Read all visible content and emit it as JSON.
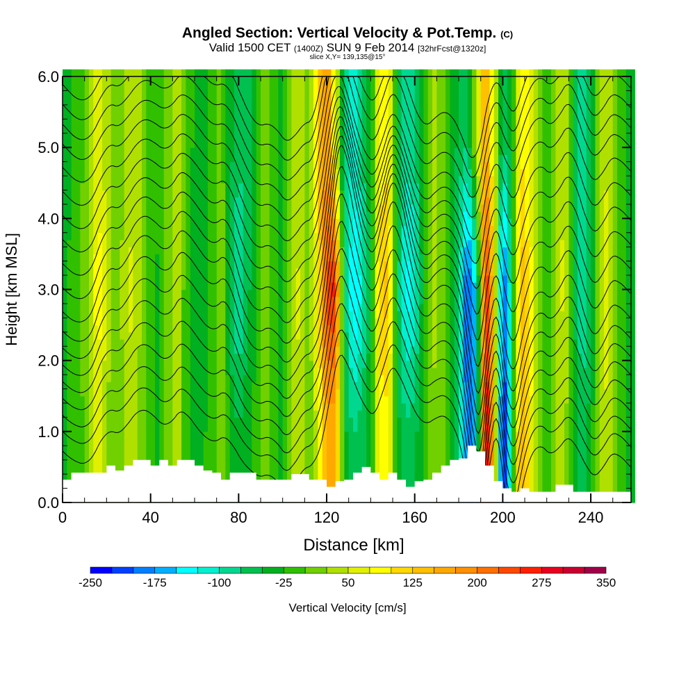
{
  "chart_data": {
    "type": "heatmap",
    "title": "Angled Section: Vertical Velocity & Pot.Temp.",
    "title_suffix": "(C)",
    "subtitle_main": "Valid 1500 CET",
    "subtitle_z": "(1400Z)",
    "subtitle_date": "SUN 9 Feb 2014",
    "subtitle_fcst": "[32hrFcst@1320z]",
    "slice_label": "slice X,Y= 139,135@15°",
    "xlabel": "Distance [km]",
    "ylabel": "Height [km MSL]",
    "xlim": [
      0,
      258.3
    ],
    "ylim": [
      0,
      6
    ],
    "x_ticks": [
      "0",
      "40",
      "80",
      "120",
      "160",
      "200",
      "240"
    ],
    "y_ticks": [
      "0.0",
      "1.0",
      "2.0",
      "3.0",
      "4.0",
      "5.0",
      "6.0"
    ],
    "colorbar": {
      "label": "Vertical Velocity [cm/s]",
      "min": -250,
      "max": 350,
      "step": 25,
      "tick_labels": [
        "-250",
        "-175",
        "-100",
        "-25",
        "50",
        "125",
        "200",
        "275",
        "350"
      ],
      "colors": [
        "#0000ff",
        "#0040ff",
        "#0080ff",
        "#00b0ff",
        "#00ffff",
        "#00f0d0",
        "#00d890",
        "#00c050",
        "#00b020",
        "#30c000",
        "#70d000",
        "#b0e000",
        "#e0f000",
        "#ffff00",
        "#ffd800",
        "#ffc000",
        "#ffa800",
        "#ff9000",
        "#ff7000",
        "#ff4800",
        "#ff2000",
        "#e80020",
        "#c80030",
        "#a00048"
      ]
    },
    "distance_km": [
      0,
      4,
      8,
      12,
      16,
      20,
      24,
      28,
      32,
      36,
      40,
      44,
      48,
      52,
      56,
      60,
      64,
      68,
      72,
      76,
      80,
      84,
      88,
      92,
      96,
      100,
      104,
      108,
      112,
      116,
      120,
      124,
      128,
      132,
      136,
      140,
      144,
      148,
      152,
      156,
      160,
      164,
      168,
      172,
      176,
      180,
      184,
      188,
      192,
      196,
      200,
      204,
      208,
      212,
      216,
      220,
      224,
      228,
      232,
      236,
      240,
      244,
      248,
      252,
      256
    ],
    "vertical_velocity_cm_s": [
      {
        "height_km": 1.0,
        "values": [
          -30,
          -20,
          -10,
          20,
          60,
          30,
          -10,
          30,
          40,
          10,
          -20,
          -30,
          10,
          40,
          -20,
          -40,
          -30,
          -10,
          20,
          -30,
          -50,
          -30,
          -20,
          10,
          -20,
          -40,
          30,
          50,
          10,
          60,
          160,
          150,
          -40,
          -80,
          -60,
          -30,
          80,
          90,
          -40,
          -70,
          -60,
          -20,
          20,
          10,
          -30,
          -80,
          -200,
          -160,
          300,
          140,
          -250,
          -80,
          160,
          90,
          20,
          -30,
          20,
          40,
          -30,
          -60,
          -40,
          30,
          50,
          -10,
          -30
        ]
      },
      {
        "height_km": 3.0,
        "values": [
          -30,
          -20,
          0,
          30,
          100,
          50,
          -10,
          40,
          60,
          20,
          -20,
          -30,
          10,
          60,
          -20,
          -40,
          -40,
          -10,
          30,
          -60,
          -110,
          -60,
          -20,
          20,
          -20,
          -40,
          30,
          60,
          10,
          80,
          240,
          260,
          -60,
          -160,
          -120,
          -40,
          120,
          140,
          -60,
          -140,
          -120,
          -30,
          40,
          20,
          -20,
          -80,
          -220,
          -140,
          270,
          120,
          -230,
          -60,
          150,
          100,
          30,
          -30,
          30,
          60,
          -40,
          -110,
          -60,
          40,
          70,
          -10,
          -30
        ]
      },
      {
        "height_km": 5.0,
        "values": [
          -30,
          -30,
          -10,
          20,
          60,
          40,
          -10,
          30,
          40,
          20,
          -10,
          -20,
          10,
          40,
          -10,
          -30,
          -40,
          -20,
          10,
          -40,
          -70,
          -60,
          -30,
          10,
          -20,
          -40,
          20,
          40,
          10,
          120,
          180,
          60,
          -80,
          -110,
          -80,
          -30,
          80,
          90,
          -40,
          -90,
          -80,
          -30,
          30,
          20,
          -20,
          -60,
          -80,
          40,
          170,
          60,
          -80,
          -40,
          100,
          70,
          20,
          -30,
          30,
          50,
          -40,
          -90,
          -50,
          30,
          50,
          -10,
          -30
        ]
      }
    ],
    "terrain_height_km": [
      0.32,
      0.42,
      0.42,
      0.42,
      0.42,
      0.52,
      0.45,
      0.52,
      0.6,
      0.6,
      0.52,
      0.6,
      0.52,
      0.6,
      0.6,
      0.52,
      0.45,
      0.42,
      0.32,
      0.42,
      0.42,
      0.42,
      0.32,
      0.32,
      0.32,
      0.32,
      0.4,
      0.4,
      0.32,
      0.32,
      0.22,
      0.3,
      0.32,
      0.42,
      0.5,
      0.42,
      0.32,
      0.42,
      0.32,
      0.22,
      0.3,
      0.32,
      0.42,
      0.52,
      0.6,
      0.62,
      0.8,
      0.72,
      0.52,
      0.3,
      0.2,
      0.15,
      0.2,
      0.15,
      0.15,
      0.15,
      0.25,
      0.25,
      0.15,
      0.15,
      0.15,
      0.15,
      0.15,
      0.15,
      0.15
    ],
    "isentrope_base_heights_km": [
      0.85,
      1.15,
      1.42,
      1.7,
      1.98,
      2.26,
      2.54,
      2.82,
      3.1,
      3.38,
      3.66,
      3.94,
      4.22,
      4.5,
      4.78,
      5.06,
      5.34,
      5.62,
      5.9
    ]
  }
}
